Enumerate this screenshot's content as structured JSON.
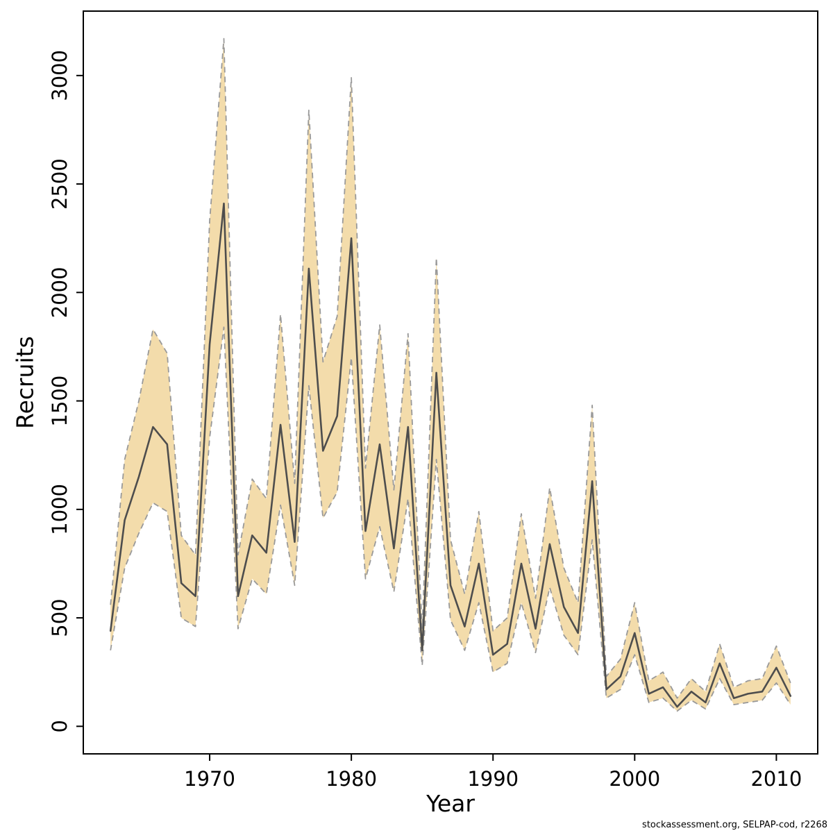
{
  "page": {
    "background": "#ffffff"
  },
  "footer": "stockassessment.org, SELPAP-cod, r2268",
  "colors": {
    "band_fill": "#f3dcab",
    "band_border": "#999999",
    "line": "#4d4d4d",
    "axis": "#000000"
  },
  "chart_data": {
    "type": "line",
    "title": "",
    "xlabel": "Year",
    "ylabel": "Recruits",
    "grid": false,
    "legend": "none",
    "band": true,
    "xlim": [
      1963,
      2011
    ],
    "ylim": [
      0,
      3200
    ],
    "x_ticks": [
      1970,
      1980,
      1990,
      2000,
      2010
    ],
    "y_ticks": [
      0,
      500,
      1000,
      1500,
      2000,
      2500,
      3000
    ],
    "x": [
      1963,
      1964,
      1965,
      1966,
      1967,
      1968,
      1969,
      1970,
      1971,
      1972,
      1973,
      1974,
      1975,
      1976,
      1977,
      1978,
      1979,
      1980,
      1981,
      1982,
      1983,
      1984,
      1985,
      1986,
      1987,
      1988,
      1989,
      1990,
      1991,
      1992,
      1993,
      1994,
      1995,
      1996,
      1997,
      1998,
      1999,
      2000,
      2001,
      2002,
      2003,
      2004,
      2005,
      2006,
      2007,
      2008,
      2009,
      2010,
      2011
    ],
    "series": [
      {
        "name": "recruits_mean",
        "values": [
          440,
          950,
          1150,
          1380,
          1300,
          660,
          600,
          1760,
          2410,
          600,
          880,
          800,
          1390,
          850,
          2110,
          1270,
          1430,
          2250,
          900,
          1300,
          820,
          1380,
          350,
          1630,
          650,
          460,
          750,
          330,
          380,
          750,
          450,
          840,
          550,
          430,
          1130,
          170,
          230,
          430,
          150,
          180,
          90,
          160,
          110,
          290,
          130,
          150,
          160,
          270,
          140
        ]
      },
      {
        "name": "ci_lower",
        "values": [
          350,
          730,
          890,
          1030,
          990,
          500,
          460,
          1330,
          1840,
          450,
          680,
          610,
          1020,
          650,
          1570,
          960,
          1080,
          1700,
          680,
          920,
          620,
          1050,
          280,
          1230,
          490,
          350,
          570,
          250,
          290,
          570,
          340,
          640,
          420,
          330,
          860,
          130,
          170,
          330,
          110,
          130,
          70,
          120,
          80,
          220,
          100,
          110,
          120,
          200,
          100
        ]
      },
      {
        "name": "ci_upper",
        "values": [
          560,
          1230,
          1500,
          1830,
          1720,
          880,
          790,
          2330,
          3170,
          790,
          1140,
          1050,
          1900,
          1120,
          2840,
          1680,
          1890,
          2990,
          1190,
          1850,
          1090,
          1810,
          450,
          2160,
          860,
          610,
          990,
          440,
          500,
          980,
          590,
          1100,
          730,
          570,
          1480,
          230,
          310,
          570,
          210,
          250,
          130,
          220,
          160,
          380,
          180,
          210,
          220,
          370,
          200
        ]
      }
    ]
  }
}
